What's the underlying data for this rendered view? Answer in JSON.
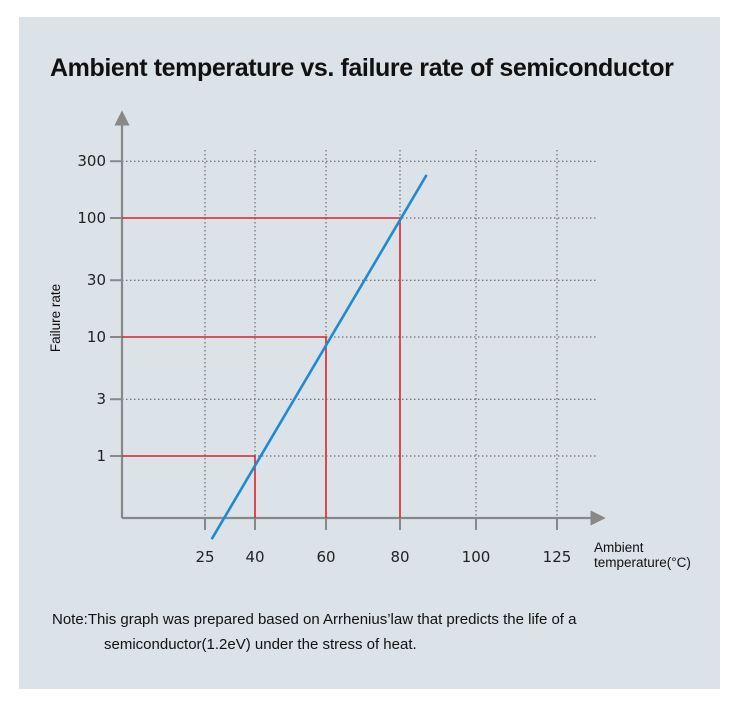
{
  "chart_data": {
    "type": "line",
    "title": "Ambient temperature vs. failure rate of semiconductor",
    "xlabel": [
      "Ambient",
      "temperature(°C)"
    ],
    "ylabel": "Failure rate",
    "x_ticks": [
      25,
      40,
      60,
      80,
      100,
      125
    ],
    "y_ticks": [
      {
        "value": 1,
        "label": "1"
      },
      {
        "value": 3,
        "label": "3"
      },
      {
        "value": 10,
        "label": "10"
      },
      {
        "value": 30,
        "label": "30"
      },
      {
        "value": 100,
        "label": "100"
      },
      {
        "value": 300,
        "label": "300"
      }
    ],
    "y_scale": "log",
    "grid": true,
    "series": [
      {
        "name": "Failure rate",
        "x": [
          27,
          87
        ],
        "y": [
          0.2,
          230
        ],
        "color": "#1f8ad0"
      }
    ],
    "reference_points": [
      {
        "x": 40,
        "y": 1
      },
      {
        "x": 60,
        "y": 10
      },
      {
        "x": 80,
        "y": 100
      }
    ],
    "reference_color": "#d9232a"
  },
  "note": {
    "prefix": "Note: ",
    "line1": "This graph was prepared based on Arrhenius’law that predicts the life of a",
    "line2": "semiconductor(1.2eV) under the stress of heat."
  }
}
